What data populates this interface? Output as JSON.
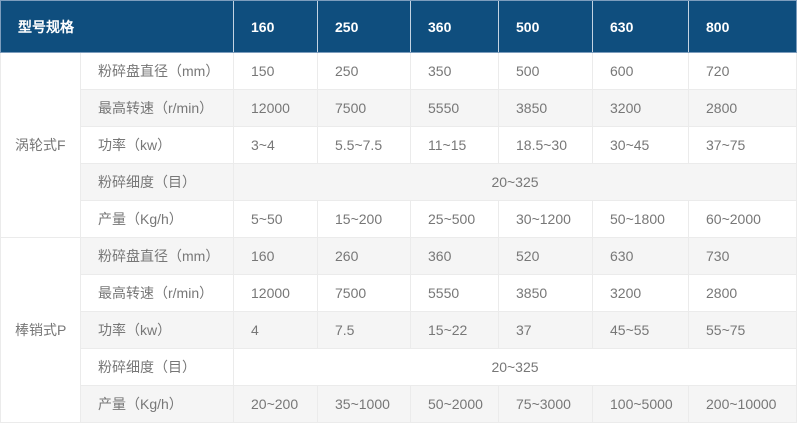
{
  "table": {
    "header": {
      "title": "型号规格",
      "models": [
        "160",
        "250",
        "360",
        "500",
        "630",
        "800"
      ]
    },
    "groups": [
      {
        "name": "涡轮式F",
        "rows": [
          {
            "label": "粉碎盘直径（mm）",
            "values": [
              "150",
              "250",
              "350",
              "500",
              "600",
              "720"
            ]
          },
          {
            "label": "最高转速（r/min）",
            "values": [
              "12000",
              "7500",
              "5550",
              "3850",
              "3200",
              "2800"
            ]
          },
          {
            "label": "功率（kw）",
            "values": [
              "3~4",
              "5.5~7.5",
              "11~15",
              "18.5~30",
              "30~45",
              "37~75"
            ]
          },
          {
            "label": "粉碎细度（目）",
            "merged_value": "20~325"
          },
          {
            "label": "产量（Kg/h）",
            "values": [
              "5~50",
              "15~200",
              "25~500",
              "30~1200",
              "50~1800",
              "60~2000"
            ]
          }
        ]
      },
      {
        "name": "棒销式P",
        "rows": [
          {
            "label": "粉碎盘直径（mm）",
            "values": [
              "160",
              "260",
              "360",
              "520",
              "630",
              "730"
            ]
          },
          {
            "label": "最高转速（r/min）",
            "values": [
              "12000",
              "7500",
              "5550",
              "3850",
              "3200",
              "2800"
            ]
          },
          {
            "label": "功率（kw）",
            "values": [
              "4",
              "7.5",
              "15~22",
              "37",
              "45~55",
              "55~75"
            ]
          },
          {
            "label": "粉碎细度（目）",
            "merged_value": "20~325"
          },
          {
            "label": "产量（Kg/h）",
            "values": [
              "20~200",
              "35~1000",
              "50~2000",
              "75~3000",
              "100~5000",
              "200~10000"
            ]
          }
        ]
      }
    ],
    "colors": {
      "header_bg": "#0f4e7e",
      "header_text": "#ffffff",
      "header_edge": "#7d9dbd",
      "row_alt": "#f5f5f5",
      "row_bg": "#ffffff",
      "border": "#ebebeb",
      "text": "#777777"
    }
  }
}
